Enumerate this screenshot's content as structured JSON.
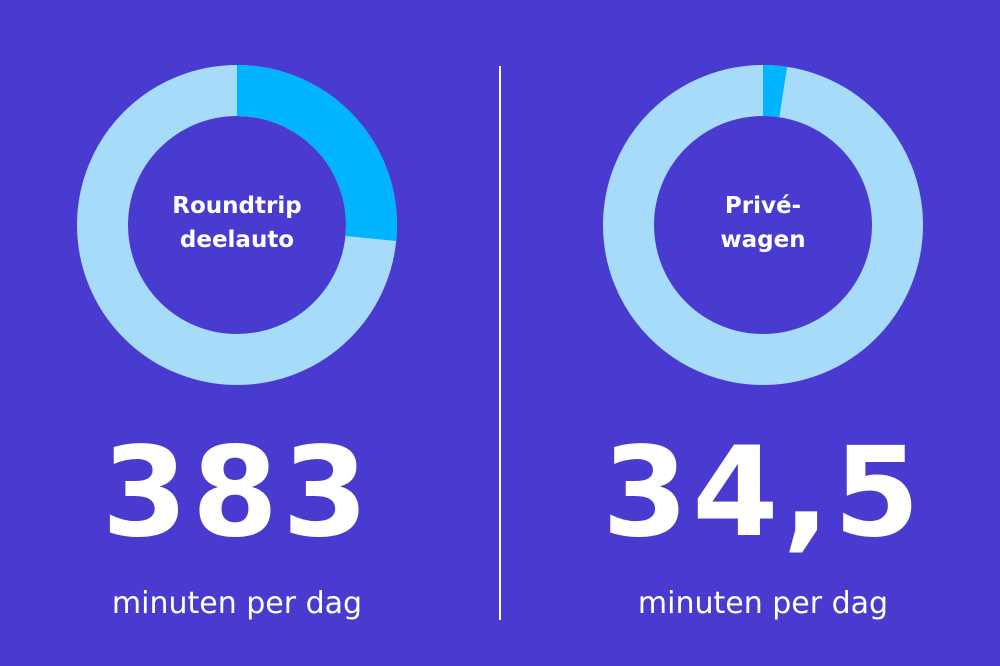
{
  "chart_data": [
    {
      "type": "pie",
      "label_lines": [
        "Roundtrip",
        "deelauto"
      ],
      "share": 0.266,
      "value": "383",
      "unit": "minuten per dag"
    },
    {
      "type": "pie",
      "label_lines": [
        "Privé-",
        "wagen"
      ],
      "share": 0.024,
      "value": "34,5",
      "unit": "minuten per dag"
    }
  ],
  "colors": {
    "background": "#4a3bd0",
    "ring": "#a6dcfa",
    "highlight": "#00b4ff",
    "text": "#ffffff"
  }
}
